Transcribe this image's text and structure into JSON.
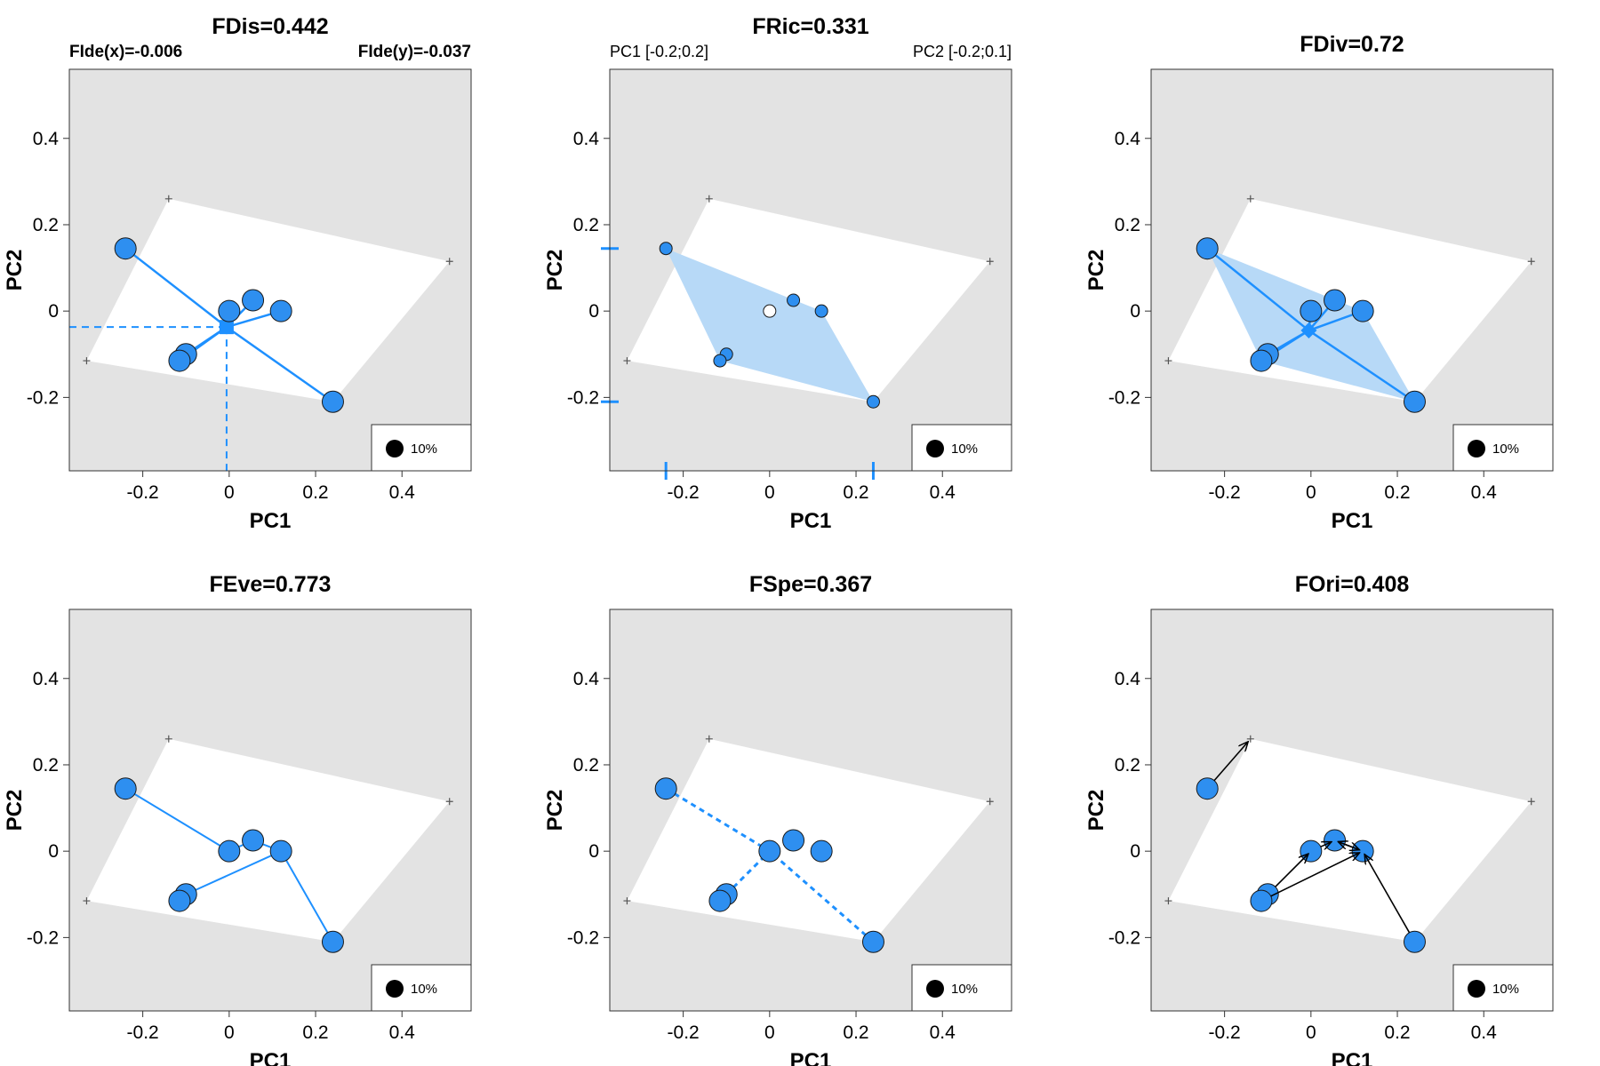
{
  "colors": {
    "accent": "#1E90FF",
    "accent_fill": "#2E8FF0",
    "hull_fill": "#B7D9F7",
    "background_panel": "#E3E3E3",
    "global_space": "#FFFFFF",
    "arrow": "#000000"
  },
  "chart_data": [
    {
      "panel": "FDis",
      "type": "scatter",
      "title": "FDis=0.442",
      "subtitles": [
        "FIde(x)=-0.006",
        "FIde(y)=-0.037"
      ],
      "xlabel": "PC1",
      "ylabel": "PC2",
      "xlim": [
        -0.37,
        0.56
      ],
      "ylim": [
        -0.37,
        0.56
      ],
      "xticks": [
        -0.2,
        0,
        0.2,
        0.4
      ],
      "yticks": [
        -0.2,
        0,
        0.2,
        0.4
      ],
      "xtick_labels": [
        "-0.2",
        "0",
        "0.2",
        "0.4"
      ],
      "ytick_labels": [
        "-0.2",
        "0",
        "0.2",
        "0.4"
      ],
      "global_hull": [
        [
          -0.14,
          0.26
        ],
        [
          0.51,
          0.115
        ],
        [
          0.24,
          -0.21
        ],
        [
          -0.33,
          -0.115
        ]
      ],
      "points": [
        [
          -0.24,
          0.145
        ],
        [
          0.0,
          0.0
        ],
        [
          0.055,
          0.025
        ],
        [
          0.12,
          0.0
        ],
        [
          -0.1,
          -0.1
        ],
        [
          -0.115,
          -0.115
        ],
        [
          0.24,
          -0.21
        ]
      ],
      "centroid": [
        -0.006,
        -0.037
      ],
      "legend": "10%"
    },
    {
      "panel": "FRic",
      "type": "scatter",
      "title": "FRic=0.331",
      "subtitles": [
        "PC1 [-0.2;0.2]",
        "PC2 [-0.2;0.1]"
      ],
      "xlabel": "PC1",
      "ylabel": "PC2",
      "xlim": [
        -0.37,
        0.56
      ],
      "ylim": [
        -0.37,
        0.56
      ],
      "xticks": [
        -0.2,
        0,
        0.2,
        0.4
      ],
      "yticks": [
        -0.2,
        0,
        0.2,
        0.4
      ],
      "xtick_labels": [
        "-0.2",
        "0",
        "0.2",
        "0.4"
      ],
      "ytick_labels": [
        "-0.2",
        "0",
        "0.2",
        "0.4"
      ],
      "global_hull": [
        [
          -0.14,
          0.26
        ],
        [
          0.51,
          0.115
        ],
        [
          0.24,
          -0.21
        ],
        [
          -0.33,
          -0.115
        ]
      ],
      "points": [
        [
          -0.24,
          0.145
        ],
        [
          0.0,
          0.0
        ],
        [
          0.055,
          0.025
        ],
        [
          0.12,
          0.0
        ],
        [
          -0.1,
          -0.1
        ],
        [
          -0.115,
          -0.115
        ],
        [
          0.24,
          -0.21
        ]
      ],
      "hull": [
        [
          -0.24,
          0.145
        ],
        [
          0.12,
          0.0
        ],
        [
          0.24,
          -0.21
        ],
        [
          -0.115,
          -0.115
        ]
      ],
      "range_x": [
        -0.24,
        0.24
      ],
      "range_y": [
        -0.21,
        0.145
      ],
      "legend": "10%"
    },
    {
      "panel": "FDiv",
      "type": "scatter",
      "title": "FDiv=0.72",
      "xlabel": "PC1",
      "ylabel": "PC2",
      "xlim": [
        -0.37,
        0.56
      ],
      "ylim": [
        -0.37,
        0.56
      ],
      "xticks": [
        -0.2,
        0,
        0.2,
        0.4
      ],
      "yticks": [
        -0.2,
        0,
        0.2,
        0.4
      ],
      "xtick_labels": [
        "-0.2",
        "0",
        "0.2",
        "0.4"
      ],
      "ytick_labels": [
        "-0.2",
        "0",
        "0.2",
        "0.4"
      ],
      "global_hull": [
        [
          -0.14,
          0.26
        ],
        [
          0.51,
          0.115
        ],
        [
          0.24,
          -0.21
        ],
        [
          -0.33,
          -0.115
        ]
      ],
      "points": [
        [
          -0.24,
          0.145
        ],
        [
          0.0,
          0.0
        ],
        [
          0.055,
          0.025
        ],
        [
          0.12,
          0.0
        ],
        [
          -0.1,
          -0.1
        ],
        [
          -0.115,
          -0.115
        ],
        [
          0.24,
          -0.21
        ]
      ],
      "hull": [
        [
          -0.24,
          0.145
        ],
        [
          0.12,
          0.0
        ],
        [
          0.24,
          -0.21
        ],
        [
          -0.115,
          -0.115
        ]
      ],
      "center": [
        -0.005,
        -0.045
      ],
      "legend": "10%"
    },
    {
      "panel": "FEve",
      "type": "scatter",
      "title": "FEve=0.773",
      "xlabel": "PC1",
      "ylabel": "PC2",
      "xlim": [
        -0.37,
        0.56
      ],
      "ylim": [
        -0.37,
        0.56
      ],
      "xticks": [
        -0.2,
        0,
        0.2,
        0.4
      ],
      "yticks": [
        -0.2,
        0,
        0.2,
        0.4
      ],
      "xtick_labels": [
        "-0.2",
        "0",
        "0.2",
        "0.4"
      ],
      "ytick_labels": [
        "-0.2",
        "0",
        "0.2",
        "0.4"
      ],
      "global_hull": [
        [
          -0.14,
          0.26
        ],
        [
          0.51,
          0.115
        ],
        [
          0.24,
          -0.21
        ],
        [
          -0.33,
          -0.115
        ]
      ],
      "points": [
        [
          -0.24,
          0.145
        ],
        [
          0.0,
          0.0
        ],
        [
          0.055,
          0.025
        ],
        [
          0.12,
          0.0
        ],
        [
          -0.1,
          -0.1
        ],
        [
          -0.115,
          -0.115
        ],
        [
          0.24,
          -0.21
        ]
      ],
      "mst_edges": [
        [
          0,
          1
        ],
        [
          1,
          2
        ],
        [
          2,
          3
        ],
        [
          3,
          4
        ],
        [
          4,
          5
        ],
        [
          3,
          6
        ]
      ],
      "legend": "10%"
    },
    {
      "panel": "FSpe",
      "type": "scatter",
      "title": "FSpe=0.367",
      "xlabel": "PC1",
      "ylabel": "PC2",
      "xlim": [
        -0.37,
        0.56
      ],
      "ylim": [
        -0.37,
        0.56
      ],
      "xticks": [
        -0.2,
        0,
        0.2,
        0.4
      ],
      "yticks": [
        -0.2,
        0,
        0.2,
        0.4
      ],
      "xtick_labels": [
        "-0.2",
        "0",
        "0.2",
        "0.4"
      ],
      "ytick_labels": [
        "-0.2",
        "0",
        "0.2",
        "0.4"
      ],
      "global_hull": [
        [
          -0.14,
          0.26
        ],
        [
          0.51,
          0.115
        ],
        [
          0.24,
          -0.21
        ],
        [
          -0.33,
          -0.115
        ]
      ],
      "points": [
        [
          -0.24,
          0.145
        ],
        [
          0.0,
          0.0
        ],
        [
          0.055,
          0.025
        ],
        [
          0.12,
          0.0
        ],
        [
          -0.1,
          -0.1
        ],
        [
          -0.115,
          -0.115
        ],
        [
          0.24,
          -0.21
        ]
      ],
      "center": [
        0.0,
        0.0
      ],
      "legend": "10%"
    },
    {
      "panel": "FOri",
      "type": "scatter",
      "title": "FOri=0.408",
      "xlabel": "PC1",
      "ylabel": "PC2",
      "xlim": [
        -0.37,
        0.56
      ],
      "ylim": [
        -0.37,
        0.56
      ],
      "xticks": [
        -0.2,
        0,
        0.2,
        0.4
      ],
      "yticks": [
        -0.2,
        0,
        0.2,
        0.4
      ],
      "xtick_labels": [
        "-0.2",
        "0",
        "0.2",
        "0.4"
      ],
      "ytick_labels": [
        "-0.2",
        "0",
        "0.2",
        "0.4"
      ],
      "global_hull": [
        [
          -0.14,
          0.26
        ],
        [
          0.51,
          0.115
        ],
        [
          0.24,
          -0.21
        ],
        [
          -0.33,
          -0.115
        ]
      ],
      "points": [
        [
          -0.24,
          0.145
        ],
        [
          0.0,
          0.0
        ],
        [
          0.055,
          0.025
        ],
        [
          0.12,
          0.0
        ],
        [
          -0.1,
          -0.1
        ],
        [
          -0.115,
          -0.115
        ],
        [
          0.24,
          -0.21
        ]
      ],
      "nn_arrows": [
        [
          0,
          -0.14,
          0.26
        ],
        [
          4,
          0.0,
          0.0
        ],
        [
          5,
          0.12,
          0.0
        ],
        [
          1,
          0.055,
          0.025
        ],
        [
          2,
          0.12,
          0.0
        ],
        [
          3,
          0.055,
          0.025
        ],
        [
          6,
          0.12,
          0.0
        ]
      ],
      "legend": "10%"
    }
  ]
}
